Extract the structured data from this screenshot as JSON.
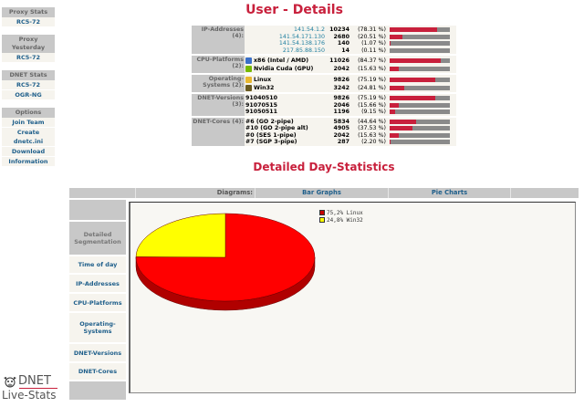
{
  "sidebar": {
    "groups": [
      {
        "header": "Proxy Stats",
        "items": [
          "RC5-72"
        ]
      },
      {
        "header": "Proxy Yesterday",
        "items": [
          "RC5-72"
        ]
      },
      {
        "header": "DNET Stats",
        "items": [
          "RC5-72",
          "OGR-NG"
        ]
      },
      {
        "header": "Options",
        "items": [
          "Join Team",
          "Create dnetc.ini",
          "Download",
          "Information"
        ]
      }
    ]
  },
  "logo": {
    "line1": "DNET",
    "line2": "Live-Stats"
  },
  "user_details": {
    "title": "User - Details",
    "sections": [
      {
        "label": "IP-Addresses (4):",
        "type": "ip",
        "rows": [
          {
            "name": "141.54.1.2",
            "count": "10234",
            "pct": "(78.31 %)",
            "value": 78.31
          },
          {
            "name": "141.54.171.130",
            "count": "2680",
            "pct": "(20.51 %)",
            "value": 20.51
          },
          {
            "name": "141.54.138.176",
            "count": "140",
            "pct": "(1.07 %)",
            "value": 1.07
          },
          {
            "name": "217.85.88.150",
            "count": "14",
            "pct": "(0.11 %)",
            "value": 0.11
          }
        ]
      },
      {
        "label": "CPU-Platforms (2):",
        "type": "icon",
        "rows": [
          {
            "name": "x86 (Intel / AMD)",
            "icon": "x86-cpu-icon",
            "icon_color": "#3a6fc8",
            "count": "11026",
            "pct": "(84.37 %)",
            "value": 84.37
          },
          {
            "name": "Nvidia Cuda (GPU)",
            "icon": "nvidia-gpu-icon",
            "icon_color": "#76b900",
            "count": "2042",
            "pct": "(15.63 %)",
            "value": 15.63
          }
        ]
      },
      {
        "label": "Operating-Systems (2):",
        "type": "icon",
        "rows": [
          {
            "name": "Linux",
            "icon": "linux-tux-icon",
            "icon_color": "#e8b830",
            "count": "9826",
            "pct": "(75.19 %)",
            "value": 75.19
          },
          {
            "name": "Win32",
            "icon": "windows-icon",
            "icon_color": "#6a5a20",
            "count": "3242",
            "pct": "(24.81 %)",
            "value": 24.81
          }
        ]
      },
      {
        "label": "DNET-Versions (3):",
        "type": "plain",
        "rows": [
          {
            "name": "91040510",
            "count": "9826",
            "pct": "(75.19 %)",
            "value": 75.19
          },
          {
            "name": "91070515",
            "count": "2046",
            "pct": "(15.66 %)",
            "value": 15.66
          },
          {
            "name": "91050511",
            "count": "1196",
            "pct": "(9.15 %)",
            "value": 9.15
          }
        ]
      },
      {
        "label": "DNET-Cores (4):",
        "type": "plain",
        "rows": [
          {
            "name": "#6 (GO 2-pipe)",
            "count": "5834",
            "pct": "(44.64 %)",
            "value": 44.64
          },
          {
            "name": "#10 (GO 2-pipe alt)",
            "count": "4905",
            "pct": "(37.53 %)",
            "value": 37.53
          },
          {
            "name": "#0 (SES 1-pipe)",
            "count": "2042",
            "pct": "(15.63 %)",
            "value": 15.63
          },
          {
            "name": "#7 (SGP 3-pipe)",
            "count": "287",
            "pct": "(2.20 %)",
            "value": 2.2
          }
        ]
      }
    ]
  },
  "day_stats": {
    "title": "Detailed Day-Statistics",
    "tabs": {
      "label": "Diagrams:",
      "bar": "Bar Graphs",
      "pie": "Pie Charts"
    },
    "nav": {
      "segmentation": "Detailed Segmentation",
      "items": [
        "Time of day",
        "IP-Addresses",
        "CPU-Platforms",
        "Operating-Systems",
        "DNET-Versions",
        "DNET-Cores"
      ]
    }
  },
  "colors": {
    "accent": "#c8203c",
    "link": "#1f5f8b",
    "header_gray": "#c8c8c8",
    "cell_bg": "#f6f4ee"
  },
  "chart_data": {
    "type": "pie",
    "title": "",
    "categories": [
      "Linux",
      "Win32"
    ],
    "values": [
      75.2,
      24.8
    ],
    "colors": [
      "#ff0000",
      "#ffff00"
    ],
    "legend": [
      "75,2% Linux",
      "24,8% Win32"
    ],
    "legend_position": "top-right"
  }
}
